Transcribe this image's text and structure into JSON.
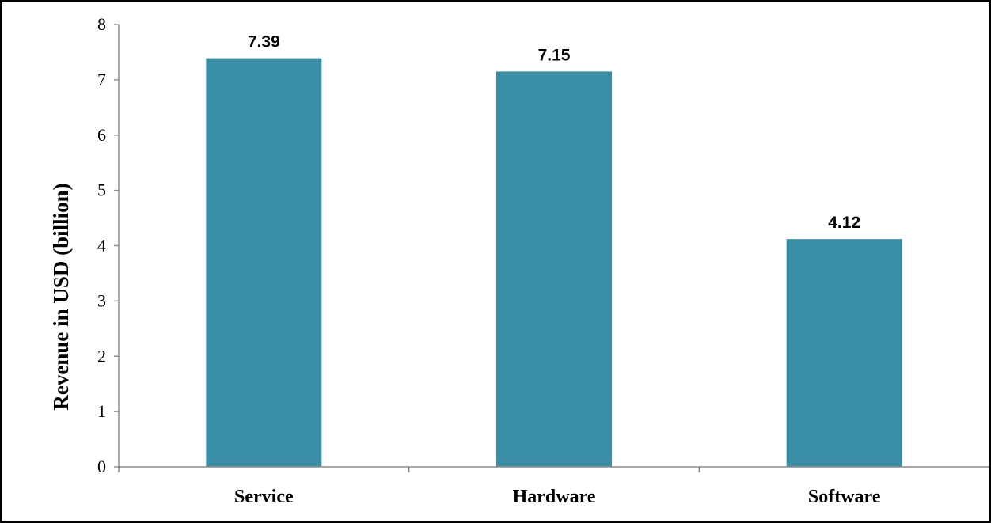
{
  "chart_data": {
    "type": "bar",
    "title": "",
    "xlabel": "",
    "ylabel": "Revenue in USD (billion)",
    "categories": [
      "Service",
      "Hardware",
      "Software"
    ],
    "values": [
      7.39,
      7.15,
      4.12
    ],
    "data_labels": [
      "7.39",
      "7.15",
      "4.12"
    ],
    "ylim": [
      0,
      8
    ],
    "yticks": [
      0,
      1,
      2,
      3,
      4,
      5,
      6,
      7,
      8
    ],
    "grid": false,
    "legend": "none",
    "bar_color": "#3a8fa6"
  }
}
